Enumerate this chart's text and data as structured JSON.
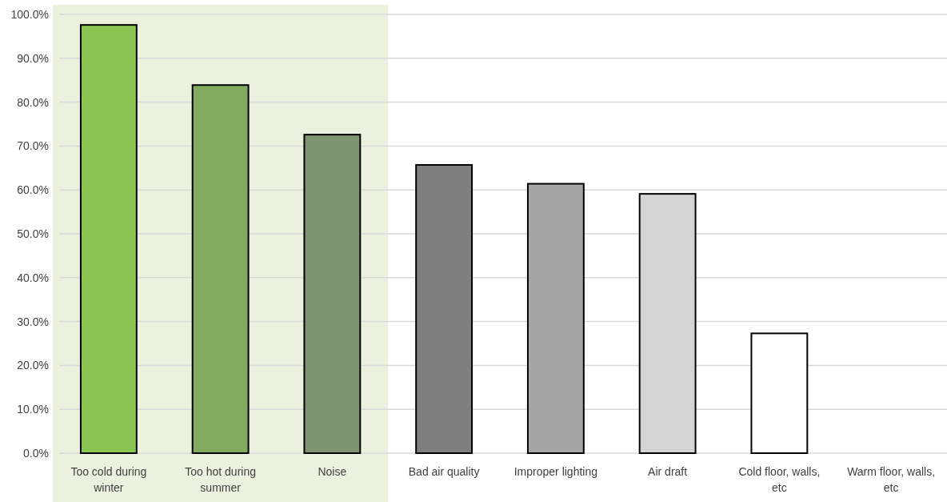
{
  "chart_data": {
    "type": "bar",
    "categories": [
      "Too cold during winter",
      "Too hot during summer",
      "Noise",
      "Bad air quality",
      "Improper lighting",
      "Air draft",
      "Cold floor, walls, etc",
      "Warm floor, walls, etc"
    ],
    "values": [
      97.6,
      83.9,
      72.6,
      65.7,
      61.4,
      59.1,
      27.3,
      0
    ],
    "colors": [
      "#8bc653",
      "#82ab61",
      "#7f9470",
      "#7f7f7f",
      "#a6a6a6",
      "#d4d4d4",
      "#ffffff",
      "#ffffff"
    ],
    "ylim": [
      0,
      100
    ],
    "yticks": [
      {
        "value": 0,
        "label": "0.0%"
      },
      {
        "value": 10,
        "label": "10.0%"
      },
      {
        "value": 20,
        "label": "20.0%"
      },
      {
        "value": 30,
        "label": "30.0%"
      },
      {
        "value": 40,
        "label": "40.0%"
      },
      {
        "value": 50,
        "label": "50.0%"
      },
      {
        "value": 60,
        "label": "60.0%"
      },
      {
        "value": 70,
        "label": "70.0%"
      },
      {
        "value": 80,
        "label": "80.0%"
      },
      {
        "value": 90,
        "label": "90.0%"
      },
      {
        "value": 100,
        "label": "100.0%"
      }
    ],
    "grid": "y",
    "bands": [
      {
        "axis": "x",
        "from": "Too cold during winter",
        "to": "Noise",
        "color": "#ebf1de"
      }
    ]
  }
}
